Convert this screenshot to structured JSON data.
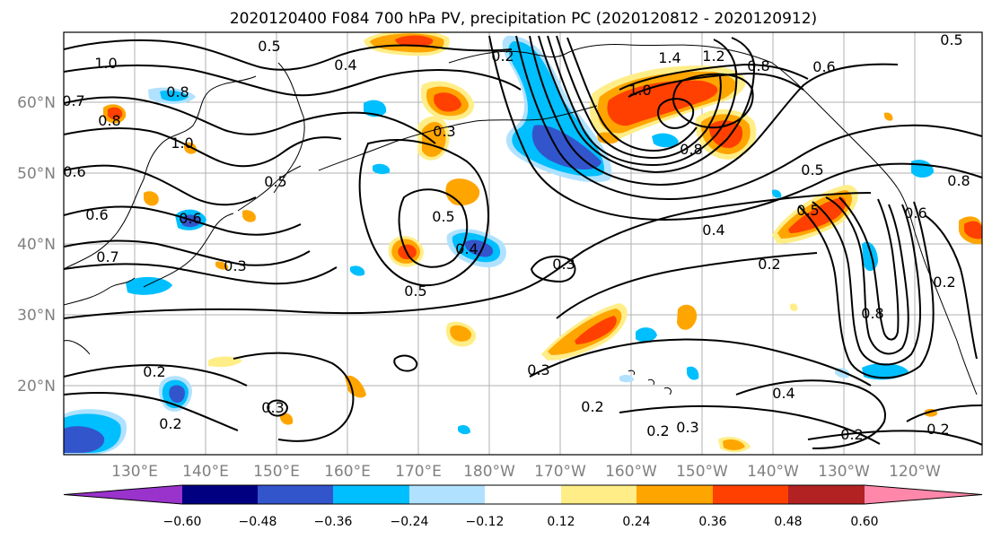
{
  "map": {
    "title": "2020120400 F084 700 hPa PV, precipitation PC (2020120812 - 2020120912)",
    "lat_labels": [
      "60°N",
      "50°N",
      "40°N",
      "30°N",
      "20°N"
    ],
    "lon_labels": [
      "130°E",
      "140°E",
      "150°E",
      "160°E",
      "170°E",
      "180°W",
      "170°W",
      "160°W",
      "150°W",
      "140°W",
      "130°W",
      "120°W"
    ],
    "contour_labels": [
      "1.0",
      "0.5",
      "0.4",
      "0.2",
      "1.4",
      "1.2",
      "0.8",
      "0.6",
      "0.7",
      "0.8",
      "0.6",
      "1.0",
      "0.3",
      "0.8",
      "0.5",
      "0.6",
      "0.5",
      "0.6",
      "0.5",
      "0.3",
      "0.5",
      "0.4",
      "0.3",
      "0.3",
      "0.4",
      "0.5",
      "0.2",
      "0.2",
      "0.8",
      "0.2",
      "0.3",
      "0.2",
      "0.4",
      "0.2",
      "0.3",
      "0.2",
      "0.2",
      "0.2",
      "0.8",
      "0.6",
      "0.5",
      "1.0",
      "0.8",
      "0.7"
    ],
    "colorbar": {
      "tick_labels": [
        "−0.60",
        "−0.48",
        "−0.36",
        "−0.24",
        "−0.12",
        "0.12",
        "0.24",
        "0.36",
        "0.48",
        "0.60"
      ],
      "colors": [
        "#9933cc",
        "#000080",
        "#3355cc",
        "#00bfff",
        "#b0e2ff",
        "#ffffff",
        "#ffee88",
        "#ffa500",
        "#ff4000",
        "#b22222",
        "#ff88aa"
      ]
    },
    "palette": {
      "positive_outer": "#ffee88",
      "positive_mid": "#ffa500",
      "positive_inner": "#ff4000",
      "negative_outer": "#b0e2ff",
      "negative_mid": "#00bfff",
      "negative_inner": "#3355cc",
      "coastline": "#000000",
      "contour": "#000000",
      "gridline": "#b0b0b0"
    }
  }
}
